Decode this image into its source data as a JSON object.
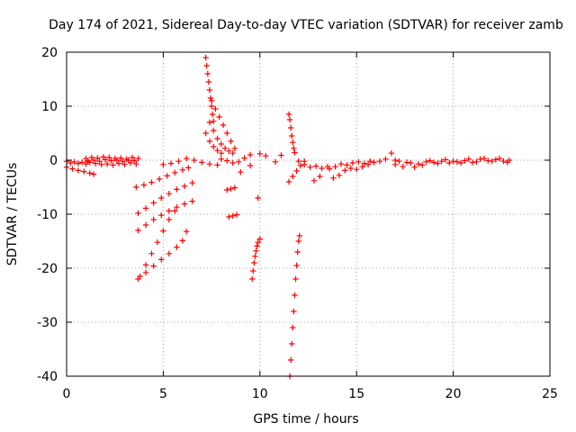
{
  "chart_data": {
    "type": "scatter",
    "title": "Day 174 of 2021, Sidereal Day-to-day VTEC variation (SDTVAR) for receiver zamb",
    "xlabel": "GPS time / hours",
    "ylabel": "SDTVAR / TECUs",
    "xlim": [
      0,
      25
    ],
    "ylim": [
      -40,
      20
    ],
    "xticks": [
      0,
      5,
      10,
      15,
      20,
      25
    ],
    "yticks": [
      -40,
      -30,
      -20,
      -10,
      0,
      10,
      20
    ],
    "xtick_labels": [
      "0",
      "5",
      "10",
      "15",
      "20",
      "25"
    ],
    "ytick_labels": [
      "-40",
      "-30",
      "-20",
      "-10",
      "0",
      "10",
      "20"
    ],
    "grid": true,
    "marker": "+",
    "color": "#ff0000",
    "segments": [
      {
        "name": "baseline-0-1",
        "points": [
          [
            0.0,
            -0.2
          ],
          [
            0.2,
            -0.5
          ],
          [
            0.4,
            -0.3
          ],
          [
            0.6,
            -0.6
          ],
          [
            0.8,
            -0.4
          ],
          [
            1.0,
            -0.7
          ],
          [
            1.1,
            -0.3
          ]
        ]
      },
      {
        "name": "dip-0-1.5",
        "points": [
          [
            0.0,
            -1.3
          ],
          [
            0.3,
            -1.6
          ],
          [
            0.6,
            -1.9
          ],
          [
            0.9,
            -2.1
          ],
          [
            1.2,
            -2.4
          ],
          [
            1.4,
            -2.6
          ]
        ]
      },
      {
        "name": "band-1-3.7",
        "points": [
          [
            1.0,
            0.3
          ],
          [
            1.3,
            0.5
          ],
          [
            1.6,
            0.4
          ],
          [
            1.9,
            0.6
          ],
          [
            2.2,
            0.5
          ],
          [
            2.5,
            0.3
          ],
          [
            2.8,
            0.4
          ],
          [
            3.1,
            0.2
          ],
          [
            3.4,
            0.5
          ],
          [
            3.7,
            0.3
          ]
        ]
      },
      {
        "name": "band-1-3.7-low",
        "points": [
          [
            1.2,
            -0.4
          ],
          [
            1.5,
            -0.6
          ],
          [
            1.8,
            -0.8
          ],
          [
            2.1,
            -0.7
          ],
          [
            2.4,
            -0.9
          ],
          [
            2.7,
            -0.6
          ],
          [
            3.0,
            -0.8
          ],
          [
            3.3,
            -0.5
          ],
          [
            3.6,
            -0.7
          ]
        ]
      },
      {
        "name": "band-1-3.7-mid",
        "points": [
          [
            1.1,
            -0.1
          ],
          [
            1.4,
            0.0
          ],
          [
            1.7,
            -0.2
          ],
          [
            2.0,
            0.1
          ],
          [
            2.3,
            -0.1
          ],
          [
            2.6,
            0.0
          ],
          [
            2.9,
            -0.2
          ],
          [
            3.2,
            0.0
          ],
          [
            3.5,
            -0.1
          ]
        ]
      },
      {
        "name": "arc-4-6.5-upper",
        "points": [
          [
            3.6,
            -5.0
          ],
          [
            4.0,
            -4.6
          ],
          [
            4.4,
            -4.1
          ],
          [
            4.8,
            -3.5
          ],
          [
            5.2,
            -2.9
          ],
          [
            5.6,
            -2.3
          ],
          [
            6.0,
            -1.8
          ],
          [
            6.3,
            -1.4
          ]
        ]
      },
      {
        "name": "arc-4-6.5-upper2",
        "points": [
          [
            3.7,
            -9.8
          ],
          [
            4.1,
            -8.9
          ],
          [
            4.5,
            -7.9
          ],
          [
            4.9,
            -7.0
          ],
          [
            5.3,
            -6.2
          ],
          [
            5.7,
            -5.4
          ],
          [
            6.1,
            -4.8
          ],
          [
            6.5,
            -4.2
          ]
        ]
      },
      {
        "name": "arc-4-6.5-mid",
        "points": [
          [
            3.7,
            -13.0
          ],
          [
            4.1,
            -12.0
          ],
          [
            4.5,
            -11.0
          ],
          [
            4.9,
            -10.2
          ],
          [
            5.3,
            -9.4
          ],
          [
            5.7,
            -8.7
          ],
          [
            6.1,
            -8.1
          ],
          [
            6.5,
            -7.6
          ]
        ]
      },
      {
        "name": "arc-4-6-lower",
        "points": [
          [
            3.7,
            -22.0
          ],
          [
            4.1,
            -20.8
          ],
          [
            4.5,
            -19.6
          ],
          [
            4.9,
            -18.4
          ],
          [
            5.3,
            -17.3
          ],
          [
            5.7,
            -16.1
          ],
          [
            6.0,
            -14.9
          ],
          [
            6.2,
            -13.2
          ]
        ]
      },
      {
        "name": "cross-4-5.5",
        "points": [
          [
            3.8,
            -21.5
          ],
          [
            4.1,
            -19.4
          ],
          [
            4.4,
            -17.3
          ],
          [
            4.7,
            -15.2
          ],
          [
            5.0,
            -13.1
          ],
          [
            5.3,
            -11.0
          ],
          [
            5.6,
            -9.4
          ]
        ]
      },
      {
        "name": "cluster-5-7",
        "points": [
          [
            5.0,
            -0.8
          ],
          [
            5.4,
            -0.6
          ],
          [
            5.8,
            -0.2
          ],
          [
            6.2,
            0.3
          ],
          [
            6.6,
            0.0
          ],
          [
            7.0,
            -0.4
          ],
          [
            7.4,
            -0.7
          ],
          [
            7.8,
            -0.9
          ]
        ]
      },
      {
        "name": "spike-7.3",
        "points": [
          [
            7.2,
            19.0
          ],
          [
            7.25,
            17.5
          ],
          [
            7.3,
            16.0
          ],
          [
            7.35,
            14.5
          ],
          [
            7.4,
            13.0
          ],
          [
            7.45,
            11.5
          ],
          [
            7.5,
            10.0
          ],
          [
            7.55,
            8.5
          ],
          [
            7.6,
            7.2
          ]
        ]
      },
      {
        "name": "fan-7.3-9",
        "points": [
          [
            7.4,
            7.0
          ],
          [
            7.6,
            5.5
          ],
          [
            7.8,
            4.0
          ],
          [
            8.0,
            3.0
          ],
          [
            8.2,
            2.2
          ],
          [
            8.4,
            1.7
          ],
          [
            8.6,
            1.3
          ]
        ]
      },
      {
        "name": "fan-7.5-8.5",
        "points": [
          [
            7.5,
            11.0
          ],
          [
            7.7,
            9.5
          ],
          [
            7.9,
            8.0
          ],
          [
            8.1,
            6.5
          ],
          [
            8.3,
            5.0
          ],
          [
            8.5,
            3.5
          ],
          [
            8.7,
            2.2
          ]
        ]
      },
      {
        "name": "fan-7.2-8",
        "points": [
          [
            7.2,
            5.0
          ],
          [
            7.4,
            3.5
          ],
          [
            7.6,
            2.5
          ],
          [
            7.8,
            1.8
          ],
          [
            8.0,
            1.3
          ]
        ]
      },
      {
        "name": "mid-8-9",
        "points": [
          [
            8.0,
            0.2
          ],
          [
            8.3,
            -0.1
          ],
          [
            8.6,
            -0.5
          ],
          [
            8.9,
            -0.3
          ],
          [
            9.2,
            0.4
          ],
          [
            9.5,
            1.0
          ]
        ]
      },
      {
        "name": "low-8.5",
        "points": [
          [
            8.3,
            -5.5
          ],
          [
            8.5,
            -5.3
          ],
          [
            8.7,
            -5.1
          ],
          [
            8.4,
            -10.5
          ],
          [
            8.6,
            -10.3
          ],
          [
            8.8,
            -10.1
          ]
        ]
      },
      {
        "name": "drop-9.8",
        "points": [
          [
            9.6,
            -22.0
          ],
          [
            9.65,
            -20.5
          ],
          [
            9.7,
            -19.0
          ],
          [
            9.75,
            -17.8
          ],
          [
            9.8,
            -16.8
          ],
          [
            9.85,
            -15.9
          ],
          [
            9.9,
            -15.2
          ],
          [
            10.0,
            -14.6
          ]
        ]
      },
      {
        "name": "isolated-10",
        "points": [
          [
            9.9,
            -7.0
          ],
          [
            10.0,
            1.2
          ],
          [
            10.3,
            0.8
          ],
          [
            10.8,
            -0.3
          ],
          [
            11.1,
            0.9
          ],
          [
            9.0,
            -2.2
          ],
          [
            9.5,
            -1.0
          ]
        ]
      },
      {
        "name": "deep-11.7",
        "points": [
          [
            11.55,
            -40.0
          ],
          [
            11.6,
            -37.0
          ],
          [
            11.65,
            -34.0
          ],
          [
            11.7,
            -31.0
          ],
          [
            11.75,
            -28.0
          ],
          [
            11.8,
            -25.0
          ],
          [
            11.85,
            -22.0
          ],
          [
            11.9,
            -19.5
          ],
          [
            11.95,
            -17.0
          ],
          [
            12.0,
            -15.0
          ],
          [
            12.05,
            -14.0
          ]
        ]
      },
      {
        "name": "spike-11.5",
        "points": [
          [
            11.5,
            8.5
          ],
          [
            11.55,
            7.5
          ],
          [
            11.6,
            6.0
          ],
          [
            11.65,
            4.5
          ],
          [
            11.7,
            3.3
          ],
          [
            11.75,
            2.2
          ],
          [
            11.8,
            1.4
          ]
        ]
      },
      {
        "name": "mid-11.5-12",
        "points": [
          [
            11.5,
            -4.0
          ],
          [
            11.7,
            -3.0
          ],
          [
            11.9,
            -2.0
          ],
          [
            12.1,
            -1.0
          ],
          [
            12.3,
            -0.2
          ]
        ]
      },
      {
        "name": "tail-12-13.5",
        "points": [
          [
            12.0,
            -0.2
          ],
          [
            12.3,
            -0.8
          ],
          [
            12.6,
            -1.3
          ],
          [
            12.9,
            -1.1
          ],
          [
            13.2,
            -1.5
          ],
          [
            13.5,
            -1.2
          ],
          [
            12.8,
            -3.8
          ],
          [
            13.1,
            -3.0
          ]
        ]
      },
      {
        "name": "band-13.5-17",
        "points": [
          [
            13.8,
            -3.3
          ],
          [
            14.1,
            -2.8
          ],
          [
            14.4,
            -1.9
          ],
          [
            14.7,
            -1.5
          ],
          [
            15.0,
            -1.7
          ],
          [
            15.3,
            -1.2
          ],
          [
            15.6,
            -0.8
          ],
          [
            15.9,
            -0.4
          ],
          [
            16.2,
            -0.2
          ],
          [
            16.5,
            0.2
          ],
          [
            16.8,
            1.3
          ],
          [
            17.0,
            0.0
          ]
        ]
      },
      {
        "name": "band-13.5-17-low",
        "points": [
          [
            13.6,
            -1.6
          ],
          [
            13.9,
            -1.2
          ],
          [
            14.2,
            -0.7
          ],
          [
            14.5,
            -0.9
          ],
          [
            14.8,
            -0.5
          ],
          [
            15.1,
            -0.3
          ],
          [
            15.4,
            -0.6
          ],
          [
            15.7,
            -0.2
          ]
        ]
      },
      {
        "name": "band-17-23",
        "points": [
          [
            17.0,
            -0.8
          ],
          [
            17.4,
            -1.2
          ],
          [
            17.8,
            -0.5
          ],
          [
            18.2,
            -0.7
          ],
          [
            18.6,
            -0.3
          ],
          [
            19.0,
            -0.4
          ],
          [
            19.4,
            -0.2
          ],
          [
            19.8,
            -0.5
          ],
          [
            20.2,
            -0.3
          ],
          [
            20.6,
            -0.1
          ],
          [
            21.0,
            -0.4
          ],
          [
            21.4,
            0.2
          ],
          [
            21.8,
            -0.1
          ],
          [
            22.2,
            0.1
          ],
          [
            22.6,
            -0.2
          ],
          [
            22.9,
            0.0
          ]
        ]
      },
      {
        "name": "band-17-23-b",
        "points": [
          [
            17.2,
            -0.2
          ],
          [
            17.6,
            -0.4
          ],
          [
            18.0,
            -1.3
          ],
          [
            18.4,
            -0.9
          ],
          [
            18.8,
            -0.1
          ],
          [
            19.2,
            -0.6
          ],
          [
            19.6,
            0.1
          ],
          [
            20.0,
            -0.2
          ],
          [
            20.4,
            -0.5
          ],
          [
            20.8,
            0.2
          ],
          [
            21.2,
            -0.3
          ],
          [
            21.6,
            0.3
          ],
          [
            22.0,
            -0.2
          ],
          [
            22.4,
            0.3
          ],
          [
            22.8,
            -0.4
          ]
        ]
      }
    ]
  }
}
